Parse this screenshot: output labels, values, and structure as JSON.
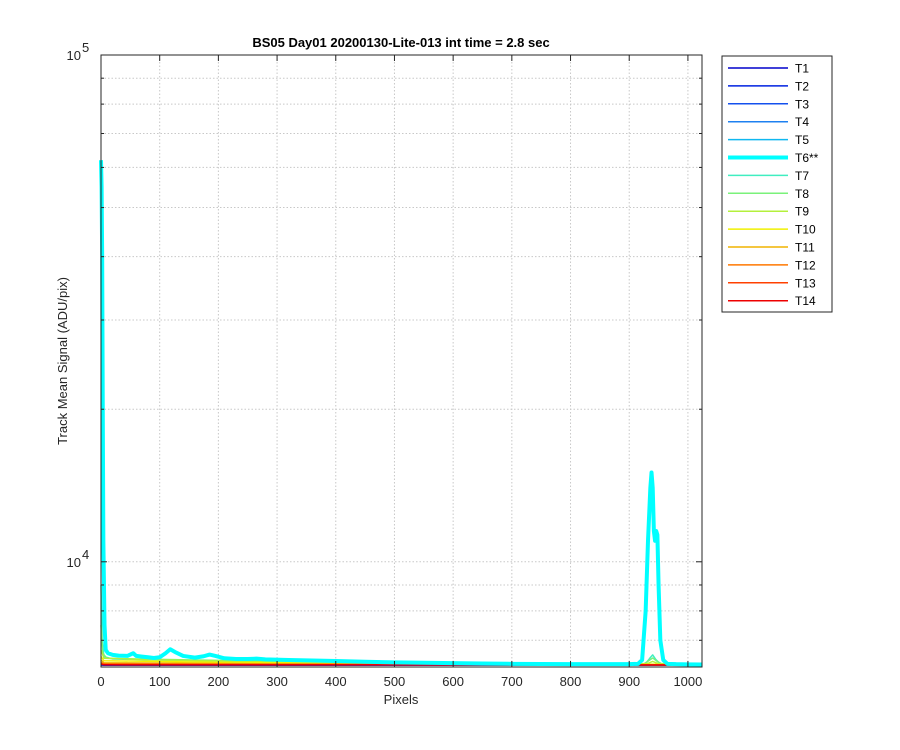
{
  "chart_data": {
    "type": "line",
    "title": "BS05 Day01 20200130-Lite-013 int time = 2.8 sec",
    "xlabel": "Pixels",
    "ylabel": "Track Mean Signal (ADU/pix)",
    "xlim": [
      0,
      1024
    ],
    "ylim": [
      6200,
      100000
    ],
    "yscale": "log",
    "grid": true,
    "legend_position": "outside-right",
    "x_ticks": [
      0,
      100,
      200,
      300,
      400,
      500,
      600,
      700,
      800,
      900,
      1000
    ],
    "x_tick_labels": [
      "0",
      "100",
      "200",
      "300",
      "400",
      "500",
      "600",
      "700",
      "800",
      "900",
      "1000"
    ],
    "y_major_ticks": [
      10000,
      100000
    ],
    "y_tick_labels": [
      {
        "base": "10",
        "exp": "4"
      },
      {
        "base": "10",
        "exp": "5"
      }
    ],
    "y_minor_ticks": [
      7000,
      8000,
      9000,
      20000,
      30000,
      40000,
      50000,
      60000,
      70000,
      80000,
      90000
    ],
    "series": [
      {
        "name": "T1",
        "color": "#0000cc",
        "width": 1.5,
        "points": [
          [
            0,
            6250
          ],
          [
            1024,
            6250
          ]
        ]
      },
      {
        "name": "T2",
        "color": "#0022e0",
        "width": 1.5,
        "points": [
          [
            0,
            6255
          ],
          [
            1024,
            6252
          ]
        ]
      },
      {
        "name": "T3",
        "color": "#1450ee",
        "width": 1.5,
        "points": [
          [
            0,
            6260
          ],
          [
            1024,
            6255
          ]
        ]
      },
      {
        "name": "T4",
        "color": "#1e80f0",
        "width": 1.5,
        "points": [
          [
            0,
            6270
          ],
          [
            1024,
            6258
          ]
        ]
      },
      {
        "name": "T5",
        "color": "#10b8f0",
        "width": 1.5,
        "points": [
          [
            0,
            6290
          ],
          [
            1024,
            6260
          ]
        ]
      },
      {
        "name": "T6**",
        "color": "#00ffff",
        "width": 4,
        "highlight": true,
        "points": [
          [
            0,
            62000
          ],
          [
            1,
            55000
          ],
          [
            2,
            40000
          ],
          [
            3,
            20000
          ],
          [
            4,
            11000
          ],
          [
            6,
            7500
          ],
          [
            8,
            6700
          ],
          [
            12,
            6600
          ],
          [
            20,
            6550
          ],
          [
            30,
            6530
          ],
          [
            45,
            6520
          ],
          [
            55,
            6600
          ],
          [
            60,
            6520
          ],
          [
            70,
            6500
          ],
          [
            80,
            6480
          ],
          [
            90,
            6460
          ],
          [
            100,
            6480
          ],
          [
            110,
            6600
          ],
          [
            118,
            6720
          ],
          [
            128,
            6620
          ],
          [
            140,
            6520
          ],
          [
            160,
            6470
          ],
          [
            175,
            6510
          ],
          [
            185,
            6560
          ],
          [
            195,
            6520
          ],
          [
            210,
            6450
          ],
          [
            230,
            6430
          ],
          [
            250,
            6430
          ],
          [
            265,
            6440
          ],
          [
            280,
            6420
          ],
          [
            320,
            6400
          ],
          [
            350,
            6390
          ],
          [
            400,
            6370
          ],
          [
            450,
            6350
          ],
          [
            500,
            6330
          ],
          [
            550,
            6320
          ],
          [
            600,
            6310
          ],
          [
            650,
            6300
          ],
          [
            700,
            6290
          ],
          [
            750,
            6285
          ],
          [
            800,
            6280
          ],
          [
            850,
            6280
          ],
          [
            900,
            6280
          ],
          [
            915,
            6290
          ],
          [
            922,
            6400
          ],
          [
            928,
            8000
          ],
          [
            932,
            11000
          ],
          [
            936,
            14000
          ],
          [
            938,
            15000
          ],
          [
            940,
            14000
          ],
          [
            942,
            11500
          ],
          [
            944,
            11000
          ],
          [
            946,
            11500
          ],
          [
            948,
            11300
          ],
          [
            950,
            9000
          ],
          [
            953,
            7000
          ],
          [
            958,
            6400
          ],
          [
            965,
            6290
          ],
          [
            980,
            6280
          ],
          [
            1000,
            6275
          ],
          [
            1024,
            6270
          ]
        ]
      },
      {
        "name": "T7",
        "color": "#40eec0",
        "width": 1.5,
        "points": [
          [
            0,
            9000
          ],
          [
            2,
            7000
          ],
          [
            5,
            6500
          ],
          [
            20,
            6430
          ],
          [
            100,
            6400
          ],
          [
            300,
            6350
          ],
          [
            600,
            6310
          ],
          [
            900,
            6290
          ],
          [
            928,
            6300
          ],
          [
            935,
            6450
          ],
          [
            940,
            6550
          ],
          [
            945,
            6420
          ],
          [
            952,
            6300
          ],
          [
            1024,
            6280
          ]
        ]
      },
      {
        "name": "T8",
        "color": "#7af27a",
        "width": 1.5,
        "points": [
          [
            0,
            7500
          ],
          [
            3,
            6600
          ],
          [
            10,
            6450
          ],
          [
            100,
            6420
          ],
          [
            200,
            6390
          ],
          [
            400,
            6340
          ],
          [
            700,
            6300
          ],
          [
            925,
            6290
          ],
          [
            935,
            6400
          ],
          [
            940,
            6460
          ],
          [
            946,
            6380
          ],
          [
            955,
            6290
          ],
          [
            1024,
            6280
          ]
        ]
      },
      {
        "name": "T9",
        "color": "#b4f03c",
        "width": 1.5,
        "points": [
          [
            0,
            6700
          ],
          [
            5,
            6450
          ],
          [
            100,
            6400
          ],
          [
            300,
            6340
          ],
          [
            700,
            6295
          ],
          [
            930,
            6290
          ],
          [
            940,
            6360
          ],
          [
            950,
            6290
          ],
          [
            1024,
            6278
          ]
        ]
      },
      {
        "name": "T10",
        "color": "#f0f000",
        "width": 1.5,
        "points": [
          [
            0,
            6500
          ],
          [
            5,
            6380
          ],
          [
            200,
            6330
          ],
          [
            600,
            6295
          ],
          [
            1024,
            6275
          ]
        ]
      },
      {
        "name": "T11",
        "color": "#f0b400",
        "width": 1.5,
        "points": [
          [
            0,
            6400
          ],
          [
            5,
            6320
          ],
          [
            300,
            6290
          ],
          [
            1024,
            6265
          ]
        ]
      },
      {
        "name": "T12",
        "color": "#ff7800",
        "width": 1.5,
        "points": [
          [
            0,
            6330
          ],
          [
            5,
            6290
          ],
          [
            500,
            6270
          ],
          [
            1024,
            6260
          ]
        ]
      },
      {
        "name": "T13",
        "color": "#ff4000",
        "width": 1.5,
        "points": [
          [
            0,
            6300
          ],
          [
            5,
            6270
          ],
          [
            1024,
            6258
          ]
        ]
      },
      {
        "name": "T14",
        "color": "#ee0000",
        "width": 1.5,
        "points": [
          [
            0,
            6280
          ],
          [
            5,
            6262
          ],
          [
            1024,
            6255
          ]
        ]
      }
    ]
  }
}
